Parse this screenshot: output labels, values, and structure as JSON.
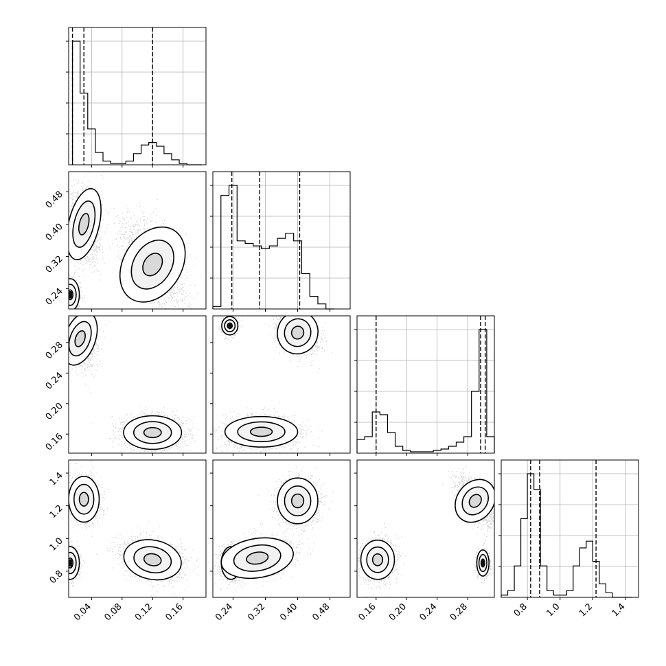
{
  "chart_data": {
    "type": "corner",
    "grid": true,
    "quantile_lines": "dashed",
    "parameters": [
      {
        "range": [
          0.01,
          0.19
        ],
        "ticks": [
          "0.04",
          "0.08",
          "0.12",
          "0.16"
        ],
        "tick_values": [
          0.04,
          0.08,
          0.12,
          0.16
        ],
        "hist": {
          "type": "step",
          "bins": [
            0.02,
            0.03,
            0.04,
            0.05,
            0.06,
            0.07,
            0.08,
            0.09,
            0.1,
            0.11,
            0.12,
            0.13,
            0.14,
            0.15,
            0.16,
            0.17,
            0.18
          ],
          "counts": [
            100,
            58,
            29,
            10,
            3,
            1,
            1,
            3,
            9,
            16,
            18,
            15,
            9,
            4,
            1,
            0,
            0
          ]
        },
        "quantiles": [
          0.015,
          0.03,
          0.12
        ]
      },
      {
        "range": [
          0.19,
          0.53
        ],
        "ticks": [
          "0.24",
          "0.32",
          "0.40",
          "0.48"
        ],
        "tick_values": [
          0.24,
          0.32,
          0.4,
          0.48
        ],
        "hist": {
          "type": "step",
          "bins": [
            0.2,
            0.22,
            0.24,
            0.26,
            0.28,
            0.3,
            0.32,
            0.34,
            0.36,
            0.38,
            0.4,
            0.42,
            0.44,
            0.46,
            0.48
          ],
          "counts": [
            1,
            45,
            49,
            27,
            26,
            25,
            24,
            25,
            28,
            30,
            27,
            14,
            5,
            2,
            0
          ]
        },
        "quantiles": [
          0.237,
          0.306,
          0.405
        ]
      },
      {
        "range": [
          0.135,
          0.315
        ],
        "ticks": [
          "0.16",
          "0.20",
          "0.24",
          "0.28"
        ],
        "tick_values": [
          0.16,
          0.2,
          0.24,
          0.28
        ],
        "hist": {
          "type": "step",
          "bins": [
            0.14,
            0.15,
            0.16,
            0.17,
            0.18,
            0.19,
            0.2,
            0.21,
            0.22,
            0.23,
            0.24,
            0.25,
            0.26,
            0.27,
            0.28,
            0.29,
            0.3,
            0.31
          ],
          "counts": [
            10,
            12,
            30,
            28,
            15,
            5,
            2,
            1,
            1,
            1,
            2,
            3,
            5,
            8,
            12,
            45,
            90,
            12
          ]
        },
        "quantiles": [
          0.16,
          0.297,
          0.303
        ]
      },
      {
        "range": [
          0.64,
          1.48
        ],
        "ticks": [
          "0.8",
          "1.0",
          "1.2",
          "1.4"
        ],
        "tick_values": [
          0.8,
          1.0,
          1.2,
          1.4
        ],
        "hist": {
          "type": "step",
          "bins": [
            0.66,
            0.7,
            0.74,
            0.78,
            0.82,
            0.86,
            0.9,
            0.94,
            0.98,
            1.02,
            1.06,
            1.1,
            1.14,
            1.18,
            1.22,
            1.26,
            1.3,
            1.34,
            1.38,
            1.42
          ],
          "counts": [
            1,
            3,
            14,
            35,
            55,
            48,
            14,
            3,
            1,
            1,
            3,
            14,
            22,
            25,
            16,
            6,
            2,
            0,
            0,
            0
          ]
        },
        "quantiles": [
          0.82,
          0.875,
          1.22
        ]
      }
    ],
    "ylabels": {
      "1": [
        "0.24",
        "0.32",
        "0.40",
        "0.48"
      ],
      "2": [
        "0.16",
        "0.20",
        "0.24",
        "0.28"
      ],
      "3": [
        "0.8",
        "1.0",
        "1.2",
        "1.4"
      ]
    },
    "panels_2d": [
      {
        "row": 1,
        "col": 0,
        "modes": [
          {
            "mx": 0.03,
            "my": 0.4,
            "sx": 0.01,
            "sy": 0.045,
            "rho": -0.1,
            "n": 1600
          },
          {
            "mx": 0.12,
            "my": 0.3,
            "sx": 0.019,
            "sy": 0.05,
            "rho": -0.45,
            "n": 2300
          },
          {
            "mx": 0.012,
            "my": 0.225,
            "sx": 0.006,
            "sy": 0.02,
            "rho": 0.0,
            "n": 900
          }
        ]
      },
      {
        "row": 2,
        "col": 0,
        "modes": [
          {
            "mx": 0.025,
            "my": 0.285,
            "sx": 0.01,
            "sy": 0.018,
            "rho": -0.2,
            "n": 1600
          },
          {
            "mx": 0.12,
            "my": 0.162,
            "sx": 0.019,
            "sy": 0.011,
            "rho": 0.0,
            "n": 2200
          }
        ]
      },
      {
        "row": 3,
        "col": 0,
        "modes": [
          {
            "mx": 0.03,
            "my": 1.24,
            "sx": 0.01,
            "sy": 0.07,
            "rho": 0.0,
            "n": 1400
          },
          {
            "mx": 0.12,
            "my": 0.87,
            "sx": 0.019,
            "sy": 0.06,
            "rho": -0.3,
            "n": 2200
          },
          {
            "mx": 0.012,
            "my": 0.85,
            "sx": 0.006,
            "sy": 0.05,
            "rho": 0.0,
            "n": 900
          }
        ]
      },
      {
        "row": 2,
        "col": 1,
        "modes": [
          {
            "mx": 0.232,
            "my": 0.302,
            "sx": 0.01,
            "sy": 0.006,
            "rho": 0.0,
            "n": 900
          },
          {
            "mx": 0.4,
            "my": 0.293,
            "sx": 0.025,
            "sy": 0.014,
            "rho": -0.3,
            "n": 1600
          },
          {
            "mx": 0.31,
            "my": 0.163,
            "sx": 0.045,
            "sy": 0.01,
            "rho": 0.0,
            "n": 2200
          }
        ]
      },
      {
        "row": 3,
        "col": 1,
        "modes": [
          {
            "mx": 0.235,
            "my": 0.85,
            "sx": 0.012,
            "sy": 0.05,
            "rho": 0.0,
            "n": 1000
          },
          {
            "mx": 0.3,
            "my": 0.88,
            "sx": 0.045,
            "sy": 0.06,
            "rho": 0.3,
            "n": 1600
          },
          {
            "mx": 0.4,
            "my": 1.23,
            "sx": 0.025,
            "sy": 0.07,
            "rho": 0.0,
            "n": 1600
          }
        ]
      },
      {
        "row": 3,
        "col": 2,
        "modes": [
          {
            "mx": 0.162,
            "my": 0.87,
            "sx": 0.011,
            "sy": 0.06,
            "rho": 0.0,
            "n": 1800
          },
          {
            "mx": 0.29,
            "my": 1.23,
            "sx": 0.012,
            "sy": 0.07,
            "rho": -0.6,
            "n": 1700
          },
          {
            "mx": 0.3,
            "my": 0.85,
            "sx": 0.004,
            "sy": 0.04,
            "rho": 0.0,
            "n": 900
          }
        ]
      }
    ]
  }
}
